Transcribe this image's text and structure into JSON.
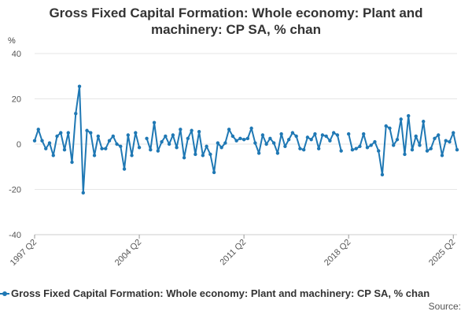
{
  "chart_data": {
    "type": "line",
    "title": "Gross Fixed Capital Formation: Whole economy: Plant and machinery: CP SA, % chan",
    "title_lines": [
      "Gross Fixed Capital Formation: Whole economy: Plant and",
      "machinery: CP SA, % chan"
    ],
    "ylabel": "%",
    "ylim": [
      -40,
      40
    ],
    "yticks": [
      "40",
      "20",
      "0",
      "-20",
      "-40"
    ],
    "ytick_values": [
      40,
      20,
      0,
      -20,
      -40
    ],
    "xtick_labels": [
      "1997 Q2",
      "2004 Q2",
      "2011 Q2",
      "2018 Q2",
      "2025 Q2"
    ],
    "xtick_indices": [
      0,
      28,
      56,
      84,
      112
    ],
    "grid": true,
    "legend_placement": "bottom",
    "source_label": "Source:",
    "series": [
      {
        "name": "Gross Fixed Capital Formation: Whole economy: Plant and machinery: CP SA, % chan",
        "color": "#1f78b4",
        "values": [
          1.5,
          6.5,
          1.5,
          -2.0,
          0.5,
          -5.0,
          3.5,
          5.0,
          -2.5,
          5.0,
          -8.0,
          13.5,
          25.5,
          -21.5,
          6.0,
          5.0,
          -5.0,
          3.5,
          -2.0,
          -2.0,
          1.5,
          3.5,
          0.0,
          -1.0,
          -11.0,
          4.0,
          -5.0,
          5.0,
          -1.5,
          null,
          2.5,
          -2.5,
          9.5,
          -3.0,
          1.0,
          3.5,
          0.0,
          4.0,
          -1.5,
          6.5,
          -6.0,
          2.5,
          6.0,
          -4.5,
          5.5,
          -5.0,
          -1.0,
          -4.5,
          -12.5,
          0.5,
          -1.5,
          0.5,
          6.5,
          3.5,
          1.5,
          2.5,
          2.0,
          2.5,
          7.0,
          0.5,
          -4.0,
          4.0,
          0.0,
          2.5,
          0.5,
          -4.0,
          4.5,
          -1.0,
          2.0,
          5.0,
          3.5,
          -2.0,
          -2.5,
          3.0,
          2.0,
          4.5,
          -2.0,
          4.0,
          3.5,
          1.5,
          5.0,
          4.0,
          -3.0,
          null,
          4.5,
          -2.5,
          -2.0,
          -1.0,
          4.5,
          -1.5,
          -0.5,
          1.0,
          -3.0,
          -13.5,
          8.0,
          7.0,
          -0.5,
          2.0,
          11.0,
          -4.5,
          12.5,
          -2.5,
          3.5,
          -0.5,
          10.0,
          -3.0,
          -2.0,
          2.5,
          4.0,
          -5.0,
          1.5,
          1.0,
          5.0,
          -2.5
        ]
      }
    ]
  }
}
